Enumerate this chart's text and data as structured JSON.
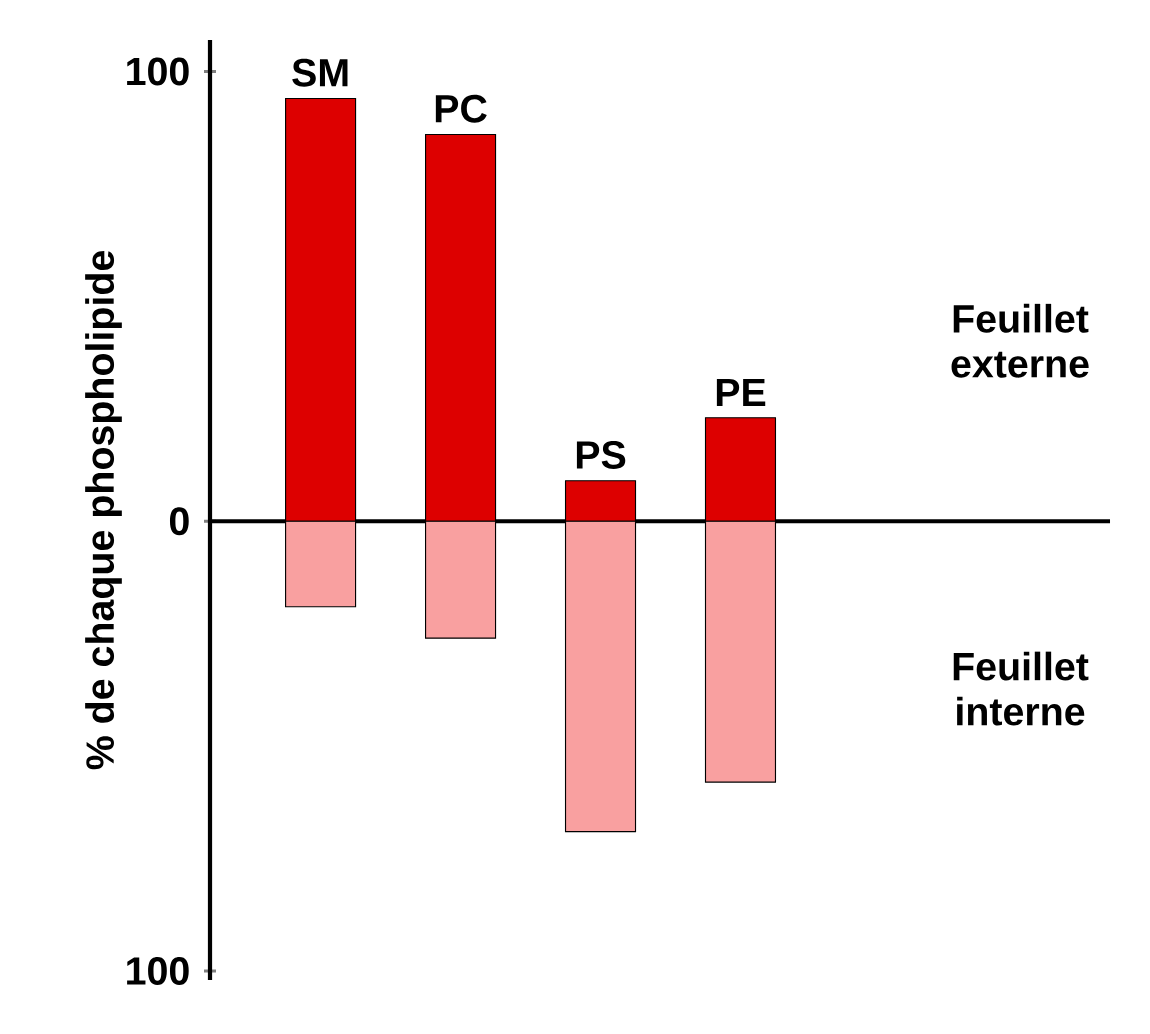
{
  "chart_data": {
    "type": "bar",
    "ylabel": "% de chaque phospholipide",
    "categories": [
      "SM",
      "PC",
      "PS",
      "PE"
    ],
    "series": [
      {
        "color": "#dd0000",
        "values": [
          94,
          86,
          9,
          23
        ]
      },
      {
        "color": "#f9a0a0",
        "values": [
          -19,
          -26,
          -69,
          -58
        ]
      }
    ],
    "stacked": true,
    "ylim": [
      -102,
      107
    ],
    "yticks": [
      100,
      0,
      {
        "value": -100,
        "label": "100"
      }
    ],
    "annotations": [
      "Feuillet externe",
      "Feuillet interne"
    ]
  }
}
